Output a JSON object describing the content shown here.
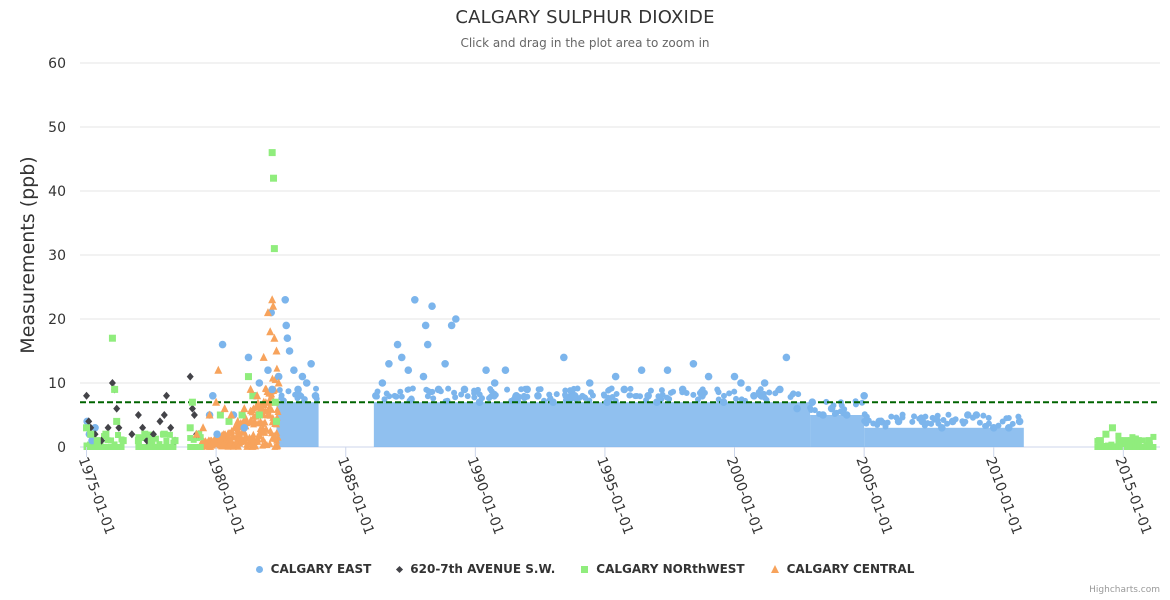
{
  "chart_data": {
    "type": "scatter",
    "title": "CALGARY SULPHUR DIOXIDE",
    "subtitle": "Click and drag in the plot area to zoom in",
    "ylabel": "Measurements (ppb)",
    "xlabel": "",
    "ylim": [
      0,
      60
    ],
    "yticks": [
      "0",
      "10",
      "20",
      "30",
      "40",
      "50",
      "60"
    ],
    "xlim": [
      "1974-10-01",
      "2016-06-01"
    ],
    "xticks": [
      "1975-01-01",
      "1980-01-01",
      "1985-01-01",
      "1990-01-01",
      "1995-01-01",
      "2000-01-01",
      "2005-01-01",
      "2010-01-01",
      "2015-01-01"
    ],
    "grid": true,
    "threshold": {
      "value": 7,
      "style": "dashed",
      "color": "#006400"
    },
    "credits": "Highcharts.com",
    "legend_position": "bottom-center",
    "series": [
      {
        "name": "CALGARY EAST",
        "marker": "circle",
        "color": "#7cb5ec",
        "points": [
          [
            "1975-01-10",
            4
          ],
          [
            "1975-02-10",
            2
          ],
          [
            "1975-03-20",
            1
          ],
          [
            "1975-05-01",
            3
          ],
          [
            "1979-10-01",
            5
          ],
          [
            "1979-11-15",
            8
          ],
          [
            "1980-01-15",
            2
          ],
          [
            "1980-04-01",
            16
          ],
          [
            "1980-09-01",
            5
          ],
          [
            "1981-02-01",
            3
          ],
          [
            "1981-04-01",
            14
          ],
          [
            "1981-07-01",
            8
          ],
          [
            "1981-09-01",
            10
          ],
          [
            "1982-01-01",
            12
          ],
          [
            "1982-02-15",
            21
          ],
          [
            "1982-03-01",
            9
          ],
          [
            "1982-06-01",
            11
          ],
          [
            "1982-09-01",
            23
          ],
          [
            "1982-09-15",
            19
          ],
          [
            "1982-10-01",
            17
          ],
          [
            "1982-11-01",
            15
          ],
          [
            "1983-01-01",
            12
          ],
          [
            "1983-03-01",
            9
          ],
          [
            "1983-05-01",
            11
          ],
          [
            "1983-07-01",
            10
          ],
          [
            "1983-09-01",
            13
          ],
          [
            "1983-11-01",
            8
          ],
          [
            "1986-03-01",
            8
          ],
          [
            "1986-06-01",
            10
          ],
          [
            "1986-09-01",
            13
          ],
          [
            "1987-01-01",
            16
          ],
          [
            "1987-03-01",
            14
          ],
          [
            "1987-06-01",
            12
          ],
          [
            "1987-09-01",
            23
          ],
          [
            "1988-01-01",
            11
          ],
          [
            "1988-02-01",
            19
          ],
          [
            "1988-03-01",
            16
          ],
          [
            "1988-05-01",
            22
          ],
          [
            "1988-08-01",
            9
          ],
          [
            "1988-11-01",
            13
          ],
          [
            "1989-02-01",
            19
          ],
          [
            "1989-04-01",
            20
          ],
          [
            "1989-08-01",
            9
          ],
          [
            "1990-03-01",
            7
          ],
          [
            "1990-06-01",
            12
          ],
          [
            "1990-10-01",
            10
          ],
          [
            "1991-03-01",
            12
          ],
          [
            "1991-08-01",
            8
          ],
          [
            "1992-01-01",
            9
          ],
          [
            "1992-06-01",
            8
          ],
          [
            "1993-01-01",
            7
          ],
          [
            "1993-06-01",
            14
          ],
          [
            "1993-11-01",
            8
          ],
          [
            "1994-06-01",
            10
          ],
          [
            "1995-02-01",
            7
          ],
          [
            "1995-06-01",
            11
          ],
          [
            "1995-10-01",
            9
          ],
          [
            "1996-06-01",
            12
          ],
          [
            "1996-09-01",
            8
          ],
          [
            "1997-01-01",
            7
          ],
          [
            "1997-06-01",
            12
          ],
          [
            "1998-01-01",
            9
          ],
          [
            "1998-06-01",
            13
          ],
          [
            "1998-10-01",
            8
          ],
          [
            "1999-01-01",
            11
          ],
          [
            "1999-08-01",
            7
          ],
          [
            "2000-01-01",
            11
          ],
          [
            "2000-04-01",
            10
          ],
          [
            "2000-10-01",
            8
          ],
          [
            "2001-03-01",
            10
          ],
          [
            "2001-10-01",
            9
          ],
          [
            "2002-01-01",
            14
          ],
          [
            "2002-06-01",
            6
          ],
          [
            "2003-01-01",
            7
          ],
          [
            "2003-06-01",
            5
          ],
          [
            "2003-10-01",
            6
          ],
          [
            "2004-05-01",
            5
          ],
          [
            "2005-01-01",
            8
          ],
          [
            "2005-08-01",
            4
          ],
          [
            "2006-05-01",
            4
          ],
          [
            "2007-04-01",
            4
          ],
          [
            "2008-01-01",
            3
          ],
          [
            "2008-06-01",
            4
          ],
          [
            "2009-01-01",
            5
          ],
          [
            "2009-05-01",
            5
          ],
          [
            "2010-01-01",
            3
          ],
          [
            "2010-08-01",
            3
          ],
          [
            "2011-01-01",
            4
          ]
        ]
      },
      {
        "name": "620-7th AVENUE S.W.",
        "marker": "diamond",
        "color": "#434348",
        "points": [
          [
            "1975-01-01",
            8
          ],
          [
            "1975-02-01",
            4
          ],
          [
            "1975-03-01",
            3
          ],
          [
            "1975-05-01",
            2
          ],
          [
            "1975-08-01",
            1
          ],
          [
            "1975-11-01",
            3
          ],
          [
            "1976-01-01",
            10
          ],
          [
            "1976-02-01",
            9
          ],
          [
            "1976-03-01",
            6
          ],
          [
            "1976-04-01",
            3
          ],
          [
            "1976-10-01",
            2
          ],
          [
            "1977-01-01",
            5
          ],
          [
            "1977-03-01",
            3
          ],
          [
            "1977-05-01",
            1
          ],
          [
            "1977-08-01",
            2
          ],
          [
            "1977-11-01",
            4
          ],
          [
            "1978-01-01",
            5
          ],
          [
            "1978-02-01",
            8
          ],
          [
            "1978-04-01",
            3
          ],
          [
            "1978-06-01",
            1
          ],
          [
            "1979-01-01",
            11
          ],
          [
            "1979-02-01",
            6
          ],
          [
            "1979-03-01",
            5
          ],
          [
            "1979-04-01",
            2
          ],
          [
            "1979-05-01",
            2
          ]
        ]
      },
      {
        "name": "CALGARY NORthWEST",
        "marker": "square",
        "color": "#90ed7d",
        "points": [
          [
            "1975-01-01",
            3
          ],
          [
            "1975-03-01",
            2
          ],
          [
            "1975-06-01",
            1
          ],
          [
            "1975-10-01",
            2
          ],
          [
            "1976-01-01",
            17
          ],
          [
            "1976-02-01",
            9
          ],
          [
            "1976-03-01",
            4
          ],
          [
            "1976-06-01",
            1
          ],
          [
            "1977-01-01",
            1
          ],
          [
            "1977-04-01",
            2
          ],
          [
            "1977-07-01",
            1
          ],
          [
            "1978-01-01",
            2
          ],
          [
            "1978-06-01",
            1
          ],
          [
            "1979-01-01",
            3
          ],
          [
            "1979-02-01",
            7
          ],
          [
            "1979-05-01",
            2
          ],
          [
            "1980-03-01",
            5
          ],
          [
            "1980-07-01",
            4
          ],
          [
            "1981-01-01",
            5
          ],
          [
            "1981-04-01",
            11
          ],
          [
            "1981-06-01",
            8
          ],
          [
            "1981-09-01",
            5
          ],
          [
            "1982-03-01",
            46
          ],
          [
            "1982-03-20",
            42
          ],
          [
            "1982-04-01",
            31
          ],
          [
            "1982-04-15",
            7
          ],
          [
            "1982-05-01",
            4
          ],
          [
            "2014-02-01",
            1
          ],
          [
            "2014-05-01",
            2
          ],
          [
            "2014-08-01",
            3
          ],
          [
            "2014-11-01",
            1
          ],
          [
            "2015-02-01",
            1
          ],
          [
            "2015-05-01",
            1
          ],
          [
            "2015-08-01",
            1
          ],
          [
            "2016-01-01",
            1
          ]
        ]
      },
      {
        "name": "CALGARY CENTRAL",
        "marker": "triangle",
        "color": "#f7a35c",
        "points": [
          [
            "1979-04-01",
            2
          ],
          [
            "1979-07-01",
            3
          ],
          [
            "1979-10-01",
            5
          ],
          [
            "1980-01-01",
            7
          ],
          [
            "1980-02-01",
            12
          ],
          [
            "1980-05-01",
            6
          ],
          [
            "1980-08-01",
            5
          ],
          [
            "1980-11-01",
            4
          ],
          [
            "1981-02-01",
            6
          ],
          [
            "1981-05-01",
            9
          ],
          [
            "1981-08-01",
            8
          ],
          [
            "1981-11-01",
            14
          ],
          [
            "1982-01-01",
            21
          ],
          [
            "1982-02-01",
            18
          ],
          [
            "1982-03-01",
            23
          ],
          [
            "1982-03-15",
            22
          ],
          [
            "1982-04-01",
            17
          ],
          [
            "1982-05-01",
            15
          ],
          [
            "1982-06-01",
            10
          ]
        ]
      }
    ]
  }
}
